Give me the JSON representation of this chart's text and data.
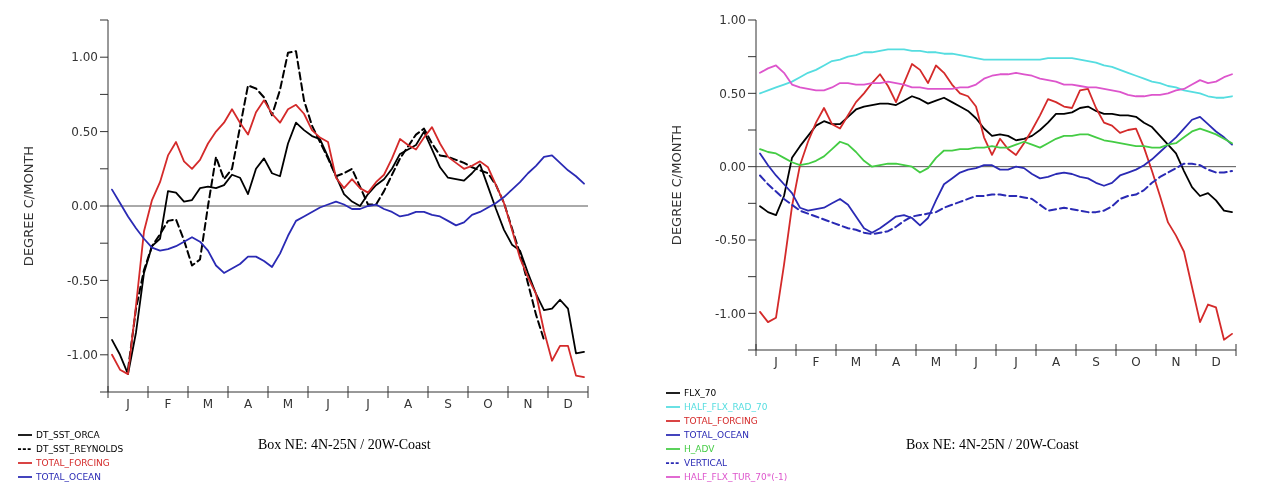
{
  "chart_data": [
    {
      "type": "line",
      "ylabel": "DEGREE C/MONTH",
      "ylim": [
        -1.25,
        1.25
      ],
      "categories": [
        null,
        null,
        "J",
        null,
        null,
        null,
        null,
        "F",
        null,
        null,
        null,
        null,
        "M",
        null,
        null,
        null,
        null,
        "A",
        null,
        null,
        null,
        null,
        "M",
        null,
        null,
        null,
        null,
        "J",
        null,
        null,
        null,
        null,
        "J",
        null,
        null,
        null,
        null,
        "A",
        null,
        null,
        null,
        null,
        "S",
        null,
        null,
        null,
        null,
        "O",
        null,
        null,
        null,
        null,
        "N",
        null,
        null,
        null,
        null,
        "D",
        null,
        null
      ],
      "yticks": [
        {
          "value": -1.25,
          "label": null
        },
        {
          "value": -1,
          "label": "-1.00"
        },
        {
          "value": -0.75,
          "label": null
        },
        {
          "value": -0.5,
          "label": "-0.50"
        },
        {
          "value": -0.25,
          "label": null
        },
        {
          "value": 0,
          "label": "0.00"
        },
        {
          "value": 0.25,
          "label": null
        },
        {
          "value": 0.5,
          "label": "0.50"
        },
        {
          "value": 0.75,
          "label": null
        },
        {
          "value": 1,
          "label": "1.00"
        },
        {
          "value": 1.25,
          "label": null
        }
      ],
      "ref_lines": [
        {
          "axis": "y",
          "value": 0,
          "label": null,
          "color": "#555555"
        }
      ],
      "legend": "bottom",
      "annotations": [
        "Box NE: 4N-25N / 20W-Coast"
      ],
      "series": [
        {
          "name": "DT_SST_ORCA",
          "color": "#000000",
          "line_style": "solid",
          "values": [
            -0.9,
            -1.0,
            -1.13,
            -0.85,
            -0.45,
            -0.27,
            -0.22,
            0.1,
            0.09,
            0.03,
            0.04,
            0.12,
            0.13,
            0.12,
            0.14,
            0.21,
            0.19,
            0.08,
            0.25,
            0.32,
            0.22,
            0.2,
            0.42,
            0.56,
            0.51,
            0.47,
            0.45,
            0.33,
            0.2,
            0.08,
            0.03,
            0,
            0.08,
            0.14,
            0.18,
            0.25,
            0.35,
            0.38,
            0.41,
            0.5,
            0.38,
            0.26,
            0.19,
            0.18,
            0.17,
            0.22,
            0.28,
            0.13,
            -0.02,
            -0.16,
            -0.26,
            -0.3,
            -0.45,
            -0.59,
            -0.7,
            -0.69,
            -0.63,
            -0.69,
            -0.99,
            -0.98
          ]
        },
        {
          "name": "DT_SST_REYNOLDS",
          "color": "#000000",
          "line_style": "dashed",
          "values": [
            null,
            null,
            -1.1,
            -0.69,
            -0.43,
            -0.27,
            -0.19,
            -0.1,
            -0.09,
            -0.23,
            -0.4,
            -0.36,
            0,
            0.33,
            0.18,
            0.25,
            0.53,
            0.81,
            0.79,
            0.73,
            0.61,
            0.78,
            1.03,
            1.04,
            0.71,
            0.54,
            0.43,
            0.32,
            0.2,
            0.22,
            0.25,
            0.13,
            0.01,
            0.01,
            0.1,
            0.21,
            0.32,
            0.4,
            0.48,
            0.52,
            0.42,
            0.34,
            0.33,
            0.31,
            0.29,
            0.26,
            0.24,
            0.22,
            0.14,
            0.02,
            -0.15,
            -0.32,
            -0.52,
            -0.73,
            -0.9,
            null,
            null,
            null,
            null,
            null
          ]
        },
        {
          "name": "TOTAL_FORCING",
          "color": "#d42a2a",
          "line_style": "solid",
          "values": [
            -1.0,
            -1.1,
            -1.13,
            -0.67,
            -0.17,
            0.04,
            0.16,
            0.34,
            0.43,
            0.3,
            0.25,
            0.31,
            0.42,
            0.5,
            0.56,
            0.65,
            0.56,
            0.48,
            0.63,
            0.71,
            0.62,
            0.56,
            0.65,
            0.68,
            0.62,
            0.51,
            0.46,
            0.43,
            0.19,
            0.12,
            0.18,
            0.12,
            0.09,
            0.16,
            0.21,
            0.32,
            0.45,
            0.41,
            0.38,
            0.46,
            0.53,
            0.42,
            0.33,
            0.29,
            0.25,
            0.27,
            0.3,
            0.26,
            0.14,
            0.02,
            -0.16,
            -0.35,
            -0.48,
            -0.59,
            -0.84,
            -1.04,
            -0.94,
            -0.94,
            -1.14,
            -1.15
          ]
        },
        {
          "name": "TOTAL_OCEAN",
          "color": "#2a2ab4",
          "line_style": "solid",
          "values": [
            0.11,
            0.02,
            -0.07,
            -0.15,
            -0.22,
            -0.28,
            -0.3,
            -0.29,
            -0.27,
            -0.24,
            -0.21,
            -0.24,
            -0.3,
            -0.4,
            -0.45,
            -0.42,
            -0.39,
            -0.34,
            -0.34,
            -0.37,
            -0.41,
            -0.32,
            -0.2,
            -0.1,
            -0.07,
            -0.04,
            -0.01,
            0.01,
            0.03,
            0.01,
            -0.02,
            -0.02,
            0,
            0.01,
            -0.02,
            -0.04,
            -0.07,
            -0.06,
            -0.04,
            -0.04,
            -0.06,
            -0.07,
            -0.1,
            -0.13,
            -0.11,
            -0.06,
            -0.04,
            -0.01,
            0.02,
            0.06,
            0.11,
            0.16,
            0.22,
            0.27,
            0.33,
            0.34,
            0.29,
            0.24,
            0.2,
            0.15
          ]
        }
      ]
    },
    {
      "type": "line",
      "ylabel": "DEGREE C/MONTH",
      "ylim": [
        -1.25,
        1.0
      ],
      "categories": [
        null,
        null,
        "J",
        null,
        null,
        null,
        null,
        "F",
        null,
        null,
        null,
        null,
        "M",
        null,
        null,
        null,
        null,
        "A",
        null,
        null,
        null,
        null,
        "M",
        null,
        null,
        null,
        null,
        "J",
        null,
        null,
        null,
        null,
        "J",
        null,
        null,
        null,
        null,
        "A",
        null,
        null,
        null,
        null,
        "S",
        null,
        null,
        null,
        null,
        "O",
        null,
        null,
        null,
        null,
        "N",
        null,
        null,
        null,
        null,
        "D",
        null,
        null
      ],
      "yticks": [
        {
          "value": -1.25,
          "label": null
        },
        {
          "value": -1,
          "label": "-1.00"
        },
        {
          "value": -0.75,
          "label": null
        },
        {
          "value": -0.5,
          "label": "-0.50"
        },
        {
          "value": -0.25,
          "label": null
        },
        {
          "value": 0,
          "label": "0.00"
        },
        {
          "value": 0.25,
          "label": null
        },
        {
          "value": 0.5,
          "label": "0.50"
        },
        {
          "value": 0.75,
          "label": null
        },
        {
          "value": 1,
          "label": "1.00"
        }
      ],
      "ref_lines": [
        {
          "axis": "y",
          "value": 0,
          "label": null,
          "color": "#555555"
        }
      ],
      "legend": "bottom",
      "annotations": [
        "Box NE: 4N-25N / 20W-Coast"
      ],
      "series": [
        {
          "name": "FLX_70",
          "color": "#000000",
          "line_style": "solid",
          "values": [
            -0.27,
            -0.31,
            -0.33,
            -0.2,
            0.06,
            0.14,
            0.21,
            0.28,
            0.31,
            0.29,
            0.29,
            0.34,
            0.39,
            0.41,
            0.42,
            0.43,
            0.43,
            0.42,
            0.45,
            0.48,
            0.46,
            0.43,
            0.45,
            0.47,
            0.44,
            0.41,
            0.38,
            0.33,
            0.26,
            0.21,
            0.22,
            0.21,
            0.18,
            0.19,
            0.21,
            0.25,
            0.3,
            0.36,
            0.36,
            0.37,
            0.4,
            0.41,
            0.38,
            0.36,
            0.36,
            0.35,
            0.35,
            0.34,
            0.3,
            0.27,
            0.21,
            0.15,
            0.09,
            -0.03,
            -0.14,
            -0.2,
            -0.18,
            -0.23,
            -0.3,
            -0.31
          ]
        },
        {
          "name": "HALF_FLX_RAD_70",
          "color": "#55dde0",
          "line_style": "solid",
          "values": [
            0.5,
            0.52,
            0.54,
            0.56,
            0.58,
            0.61,
            0.64,
            0.66,
            0.69,
            0.72,
            0.73,
            0.75,
            0.76,
            0.78,
            0.78,
            0.79,
            0.8,
            0.8,
            0.8,
            0.79,
            0.79,
            0.78,
            0.78,
            0.77,
            0.77,
            0.76,
            0.75,
            0.74,
            0.73,
            0.73,
            0.73,
            0.73,
            0.73,
            0.73,
            0.73,
            0.73,
            0.74,
            0.74,
            0.74,
            0.74,
            0.73,
            0.72,
            0.71,
            0.69,
            0.68,
            0.66,
            0.64,
            0.62,
            0.6,
            0.58,
            0.57,
            0.55,
            0.54,
            0.52,
            0.51,
            0.5,
            0.48,
            0.47,
            0.47,
            0.48
          ]
        },
        {
          "name": "TOTAL_FORCING",
          "color": "#d42a2a",
          "line_style": "solid",
          "values": [
            -0.99,
            -1.06,
            -1.03,
            -0.67,
            -0.27,
            0.01,
            0.17,
            0.3,
            0.4,
            0.29,
            0.26,
            0.35,
            0.44,
            0.5,
            0.57,
            0.63,
            0.55,
            0.44,
            0.57,
            0.7,
            0.66,
            0.57,
            0.69,
            0.64,
            0.56,
            0.5,
            0.48,
            0.41,
            0.2,
            0.08,
            0.19,
            0.12,
            0.08,
            0.16,
            0.25,
            0.35,
            0.46,
            0.44,
            0.41,
            0.4,
            0.52,
            0.53,
            0.4,
            0.3,
            0.28,
            0.23,
            0.25,
            0.26,
            0.13,
            -0.03,
            -0.2,
            -0.38,
            -0.47,
            -0.58,
            -0.82,
            -1.06,
            -0.94,
            -0.96,
            -1.18,
            -1.14
          ]
        },
        {
          "name": "TOTAL_OCEAN",
          "color": "#2a2ab4",
          "line_style": "solid",
          "values": [
            0.09,
            0.01,
            -0.06,
            -0.12,
            -0.18,
            -0.28,
            -0.3,
            -0.29,
            -0.28,
            -0.25,
            -0.22,
            -0.26,
            -0.34,
            -0.42,
            -0.45,
            -0.42,
            -0.38,
            -0.34,
            -0.33,
            -0.35,
            -0.4,
            -0.35,
            -0.23,
            -0.12,
            -0.08,
            -0.04,
            -0.02,
            -0.01,
            0.01,
            0.01,
            -0.02,
            -0.02,
            0,
            -0.01,
            -0.05,
            -0.08,
            -0.07,
            -0.05,
            -0.04,
            -0.05,
            -0.07,
            -0.08,
            -0.11,
            -0.13,
            -0.11,
            -0.06,
            -0.04,
            -0.02,
            0.01,
            0.05,
            0.1,
            0.15,
            0.2,
            0.26,
            0.32,
            0.34,
            0.29,
            0.24,
            0.2,
            0.15
          ]
        },
        {
          "name": "H_ADV",
          "color": "#44cc44",
          "line_style": "solid",
          "values": [
            0.12,
            0.1,
            0.09,
            0.06,
            0.03,
            0.01,
            0.02,
            0.04,
            0.07,
            0.12,
            0.17,
            0.15,
            0.1,
            0.04,
            0,
            0.01,
            0.02,
            0.02,
            0.01,
            0,
            -0.04,
            -0.01,
            0.06,
            0.11,
            0.11,
            0.12,
            0.12,
            0.13,
            0.13,
            0.14,
            0.13,
            0.13,
            0.15,
            0.17,
            0.15,
            0.13,
            0.16,
            0.19,
            0.21,
            0.21,
            0.22,
            0.22,
            0.2,
            0.18,
            0.17,
            0.16,
            0.15,
            0.14,
            0.14,
            0.13,
            0.13,
            0.15,
            0.16,
            0.2,
            0.24,
            0.26,
            0.24,
            0.22,
            0.19,
            0.16
          ]
        },
        {
          "name": "VERTICAL",
          "color": "#2a2ab4",
          "line_style": "dashed",
          "values": [
            -0.06,
            -0.12,
            -0.17,
            -0.22,
            -0.26,
            -0.3,
            -0.32,
            -0.34,
            -0.36,
            -0.38,
            -0.4,
            -0.42,
            -0.43,
            -0.45,
            -0.46,
            -0.45,
            -0.44,
            -0.41,
            -0.37,
            -0.34,
            -0.33,
            -0.32,
            -0.31,
            -0.28,
            -0.26,
            -0.24,
            -0.22,
            -0.2,
            -0.2,
            -0.19,
            -0.19,
            -0.2,
            -0.2,
            -0.21,
            -0.22,
            -0.26,
            -0.3,
            -0.29,
            -0.28,
            -0.29,
            -0.3,
            -0.31,
            -0.31,
            -0.3,
            -0.27,
            -0.22,
            -0.2,
            -0.19,
            -0.16,
            -0.11,
            -0.07,
            -0.04,
            -0.01,
            0.02,
            0.02,
            0.01,
            -0.02,
            -0.04,
            -0.04,
            -0.03
          ]
        },
        {
          "name": "HALF_FLX_TUR_70*(-1)",
          "color": "#dd55cc",
          "line_style": "solid",
          "values": [
            0.64,
            0.67,
            0.69,
            0.64,
            0.56,
            0.54,
            0.53,
            0.52,
            0.52,
            0.54,
            0.57,
            0.57,
            0.56,
            0.56,
            0.57,
            0.57,
            0.58,
            0.57,
            0.56,
            0.54,
            0.54,
            0.53,
            0.53,
            0.53,
            0.53,
            0.54,
            0.54,
            0.56,
            0.6,
            0.62,
            0.63,
            0.63,
            0.64,
            0.63,
            0.62,
            0.6,
            0.59,
            0.58,
            0.56,
            0.56,
            0.55,
            0.54,
            0.54,
            0.53,
            0.52,
            0.51,
            0.49,
            0.48,
            0.48,
            0.49,
            0.49,
            0.5,
            0.52,
            0.53,
            0.56,
            0.59,
            0.57,
            0.58,
            0.61,
            0.63
          ]
        }
      ]
    }
  ]
}
